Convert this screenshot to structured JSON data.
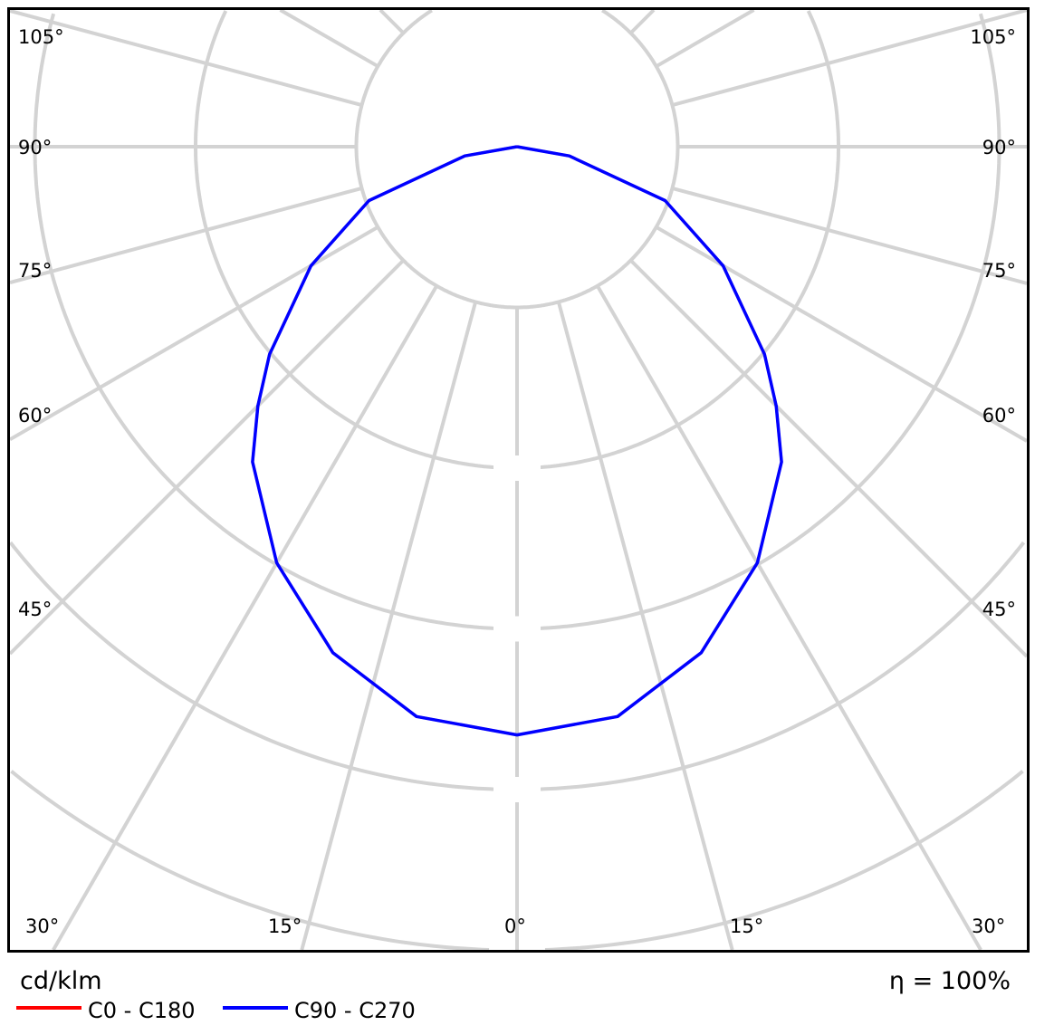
{
  "chart_data": {
    "type": "polar",
    "unit_label": "cd/klm",
    "efficiency_label": "η = 100%",
    "grid": true,
    "angle_step_deg": 15,
    "radial_rings": 5,
    "angle_labels_side": [
      "105°",
      "90°",
      "75°",
      "60°",
      "45°"
    ],
    "angle_labels_bottom": [
      "30°",
      "15°",
      "0°",
      "15°",
      "30°"
    ],
    "legend_placement": "bottom-left",
    "series": [
      {
        "name": "C0 - C180",
        "color": "#ff0000",
        "angles": [
          0,
          10,
          20,
          30,
          40,
          45,
          50,
          60,
          70,
          80,
          90
        ],
        "values": [
          3.66,
          3.6,
          3.35,
          2.99,
          2.56,
          2.28,
          2.01,
          1.48,
          0.98,
          0.33,
          0
        ]
      },
      {
        "name": "C90 - C270",
        "color": "#0000ff",
        "angles": [
          0,
          10,
          20,
          30,
          40,
          45,
          50,
          60,
          70,
          80,
          90
        ],
        "values": [
          3.66,
          3.6,
          3.35,
          2.99,
          2.56,
          2.28,
          2.01,
          1.48,
          0.98,
          0.33,
          0
        ]
      }
    ]
  }
}
